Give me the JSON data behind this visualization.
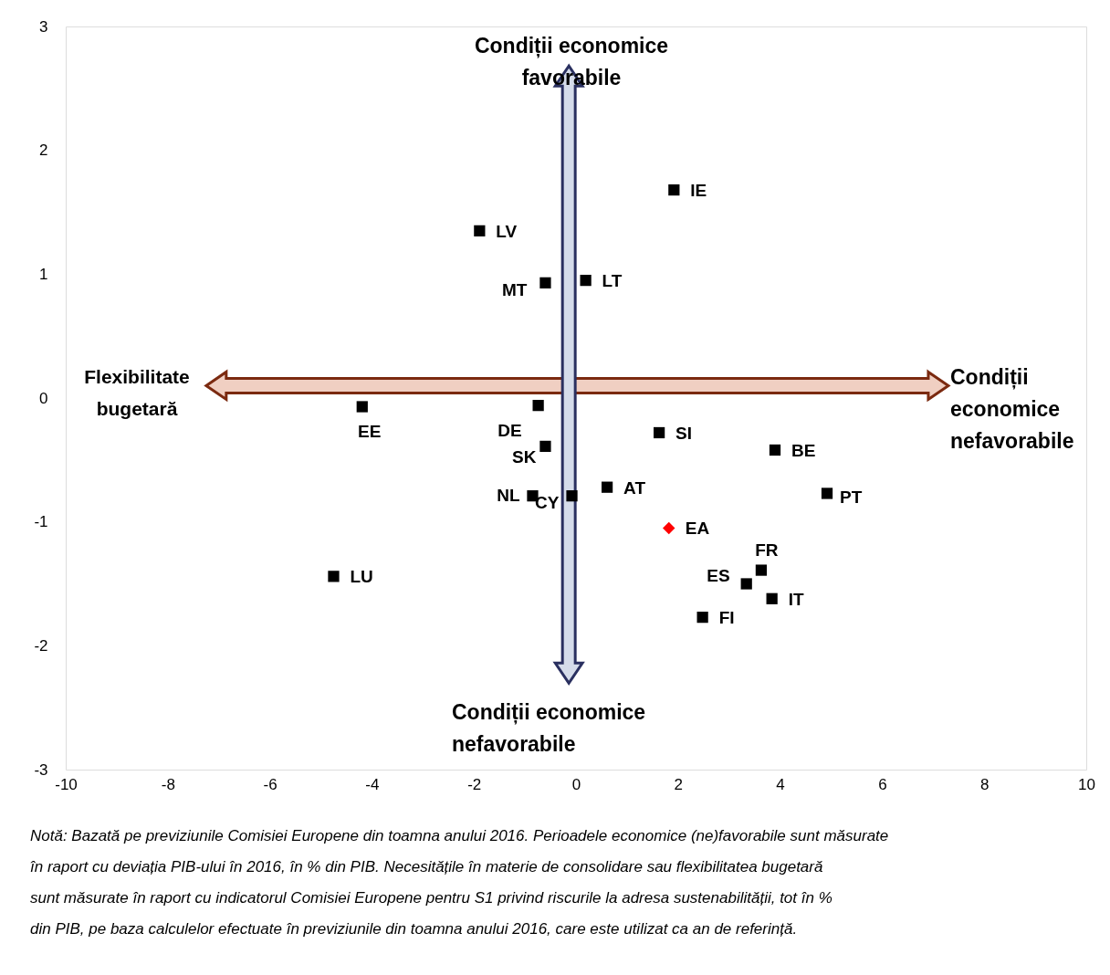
{
  "chart_data": {
    "type": "scatter",
    "xlim": [
      -10,
      10
    ],
    "xticks": [
      -10,
      -8,
      -6,
      -4,
      -2,
      0,
      2,
      4,
      6,
      8,
      10
    ],
    "ylim": [
      -3,
      3
    ],
    "yticks": [
      -3,
      -2,
      -1,
      0,
      1,
      2,
      3
    ],
    "grid": false,
    "series": [
      {
        "color": "#000000",
        "marker": "square",
        "x": [
          1.92,
          -1.89,
          -0.6,
          0.19,
          -4.19,
          -0.74,
          1.63,
          3.9,
          -0.6,
          0.61,
          -0.85,
          -0.08,
          4.92,
          3.63,
          3.34,
          3.84,
          2.48,
          -4.75
        ],
        "values": [
          1.68,
          1.35,
          0.93,
          0.95,
          -0.07,
          -0.06,
          -0.28,
          -0.42,
          -0.39,
          -0.72,
          -0.79,
          -0.79,
          -0.77,
          -1.39,
          -1.5,
          -1.62,
          -1.77,
          -1.44
        ]
      },
      {
        "color": "#ff0000",
        "marker": "diamond",
        "x": [
          1.82
        ],
        "values": [
          -1.05
        ]
      }
    ],
    "annotations": [
      {
        "text": "IE",
        "x": 1.92,
        "y": 1.68
      },
      {
        "text": "LV",
        "x": -1.89,
        "y": 1.35
      },
      {
        "text": "MT",
        "x": -0.6,
        "y": 0.93
      },
      {
        "text": "LT",
        "x": 0.19,
        "y": 0.95
      },
      {
        "text": "EE",
        "x": -4.19,
        "y": -0.07
      },
      {
        "text": "DE",
        "x": -0.74,
        "y": -0.06
      },
      {
        "text": "SI",
        "x": 1.63,
        "y": -0.28
      },
      {
        "text": "BE",
        "x": 3.9,
        "y": -0.42
      },
      {
        "text": "SK",
        "x": -0.6,
        "y": -0.39
      },
      {
        "text": "AT",
        "x": 0.61,
        "y": -0.72
      },
      {
        "text": "NL",
        "x": -0.85,
        "y": -0.79
      },
      {
        "text": "CY",
        "x": -0.08,
        "y": -0.79
      },
      {
        "text": "PT",
        "x": 4.92,
        "y": -0.77
      },
      {
        "text": "FR",
        "x": 3.63,
        "y": -1.39
      },
      {
        "text": "ES",
        "x": 3.34,
        "y": -1.5
      },
      {
        "text": "IT",
        "x": 3.84,
        "y": -1.62
      },
      {
        "text": "FI",
        "x": 2.48,
        "y": -1.77
      },
      {
        "text": "LU",
        "x": -4.75,
        "y": -1.44
      },
      {
        "text": "EA",
        "x": 1.82,
        "y": -1.05
      },
      "Condiții economice favorabile",
      "Condiții economice nefavorabile",
      "Flexibilitate bugetară",
      "Condiții economice nefavorabile",
      "Notă: Bazată pe previziunile Comisiei Europene din toamna anului 2016. Perioadele economice (ne)favorabile sunt măsurate în raport cu deviația PIB-ului în 2016, în % din PIB. Necesitățile în materie de consolidare sau flexibilitatea bugetară sunt măsurate în raport cu indicatorul Comisiei Europene pentru S1 privind riscurile la adresa sustenabilității, tot în % din PIB, pe baza calculelor efectuate în previziunile din toamna anului 2016, care este utilizat ca an de referință."
    ]
  }
}
